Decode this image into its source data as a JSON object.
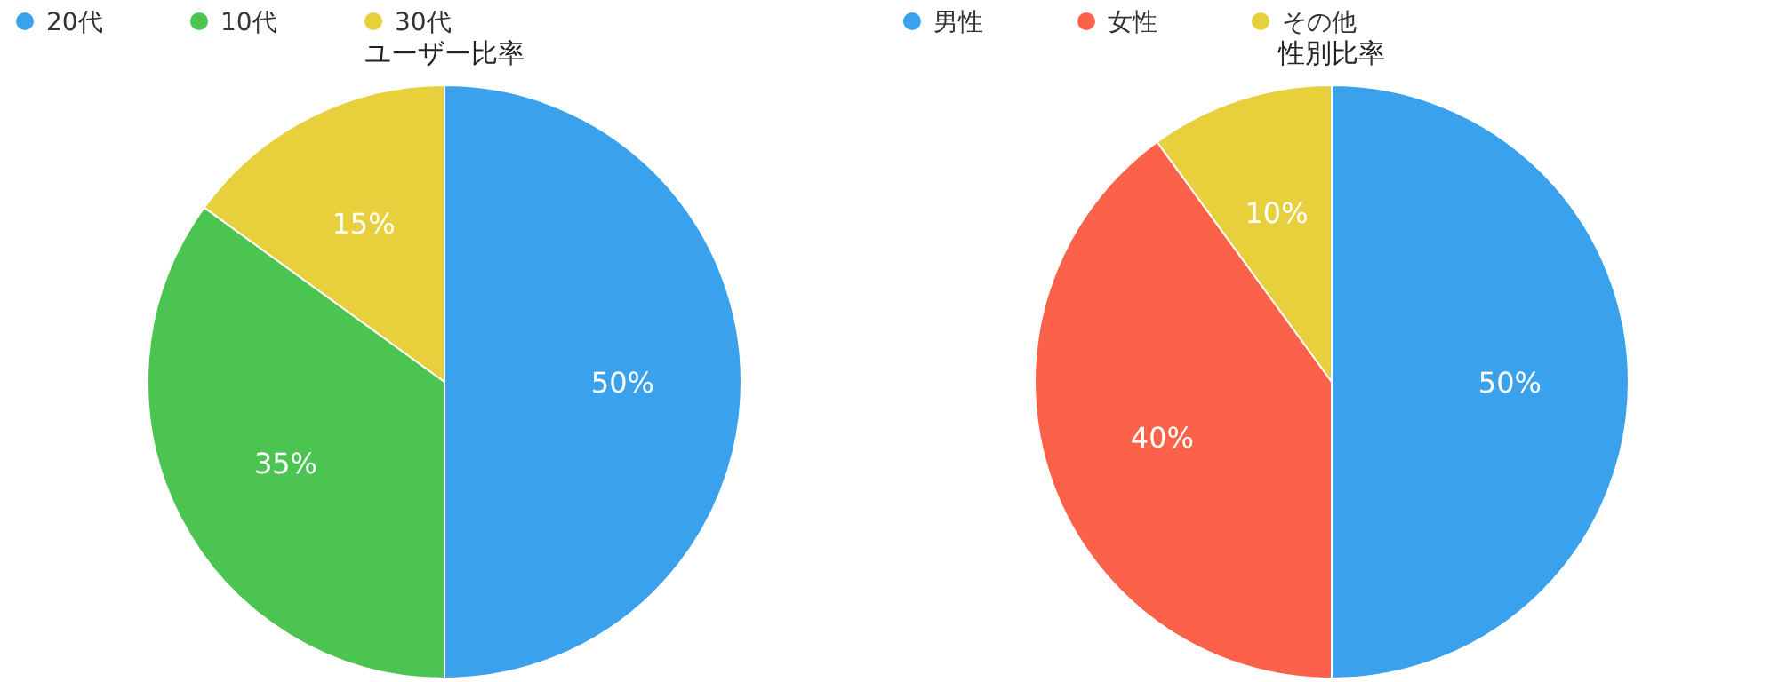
{
  "chart_data": [
    {
      "type": "pie",
      "title": "ユーザー比率",
      "categories": [
        "20代",
        "10代",
        "30代"
      ],
      "values": [
        50,
        35,
        15
      ],
      "colors": [
        "#3aa2ec",
        "#4cc451",
        "#e8cf3c"
      ],
      "legend": "top",
      "value_labels": [
        "50%",
        "35%",
        "15%"
      ]
    },
    {
      "type": "pie",
      "title": "性別比率",
      "categories": [
        "男性",
        "女性",
        "その他"
      ],
      "values": [
        50,
        40,
        10
      ],
      "colors": [
        "#3aa2ec",
        "#fb6249",
        "#e8cf3c"
      ],
      "legend": "top",
      "value_labels": [
        "50%",
        "40%",
        "10%"
      ]
    }
  ]
}
